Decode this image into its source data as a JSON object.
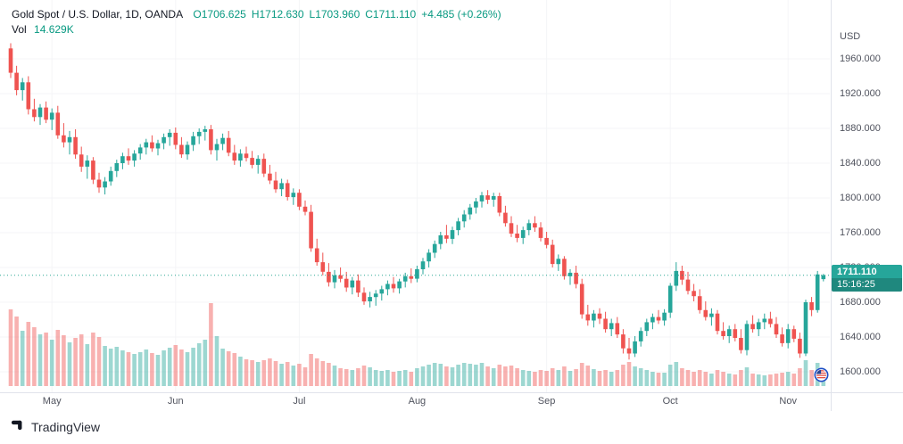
{
  "legend": {
    "symbol_title": "Gold Spot / U.S. Dollar, 1D, OANDA",
    "ohlc": {
      "open": "O1706.625",
      "high": "H1712.630",
      "low": "L1703.960",
      "close": "C1711.110",
      "change": "+4.485 (+0.26%)"
    },
    "volume_label": "Vol",
    "volume_value": "14.629K"
  },
  "price_axis": {
    "currency": "USD",
    "tick_labels": [
      "1960.000",
      "1920.000",
      "1880.000",
      "1840.000",
      "1800.000",
      "1760.000",
      "1720.000",
      "1680.000",
      "1640.000",
      "1600.000"
    ],
    "tick_values": [
      1960,
      1920,
      1880,
      1840,
      1800,
      1760,
      1720,
      1680,
      1640,
      1600
    ]
  },
  "time_axis": {
    "months": [
      {
        "label": "May",
        "index": 7
      },
      {
        "label": "Jun",
        "index": 28
      },
      {
        "label": "Jul",
        "index": 49
      },
      {
        "label": "Aug",
        "index": 69
      },
      {
        "label": "Sep",
        "index": 91
      },
      {
        "label": "Oct",
        "index": 112
      },
      {
        "label": "Nov",
        "index": 132
      }
    ]
  },
  "last_price": {
    "value": "1711.110",
    "countdown": "15:16:25",
    "price": 1711.11
  },
  "footer": {
    "brand": "TradingView"
  },
  "icons": [
    "tradingview-logo-icon",
    "us-flag-event-icon"
  ],
  "colors": {
    "up": "#26a69a",
    "down": "#ef5350",
    "vol_up": "rgba(38,166,154,0.45)",
    "vol_down": "rgba(239,83,80,0.45)",
    "text_green": "#089981",
    "axis_text": "#50535e",
    "title_text": "#131722",
    "grid": "#f4f5f7",
    "badge_bg": "#26a69a",
    "price_line": "#089981"
  },
  "chart_data": {
    "type": "candlestick",
    "title": "Gold Spot / U.S. Dollar, 1D, OANDA",
    "ylabel": "USD",
    "ylim": [
      1600,
      1960
    ],
    "x_unit": "daily bars, late Apr through Nov 9",
    "volume_unit": "K",
    "legend_position": "top-left",
    "grid": "faint",
    "last_close": 1711.11,
    "candles_format": [
      "open",
      "high",
      "low",
      "close",
      "volume_K"
    ],
    "candles": [
      [
        1972,
        1978,
        1938,
        1944,
        86
      ],
      [
        1944,
        1952,
        1918,
        1924,
        78
      ],
      [
        1924,
        1938,
        1912,
        1933,
        62
      ],
      [
        1933,
        1940,
        1896,
        1902,
        72
      ],
      [
        1902,
        1914,
        1888,
        1893,
        66
      ],
      [
        1893,
        1908,
        1884,
        1904,
        58
      ],
      [
        1904,
        1911,
        1886,
        1890,
        60
      ],
      [
        1890,
        1903,
        1878,
        1898,
        52
      ],
      [
        1898,
        1906,
        1868,
        1872,
        63
      ],
      [
        1872,
        1886,
        1858,
        1864,
        57
      ],
      [
        1864,
        1877,
        1850,
        1870,
        49
      ],
      [
        1870,
        1879,
        1845,
        1850,
        54
      ],
      [
        1850,
        1859,
        1830,
        1836,
        58
      ],
      [
        1836,
        1849,
        1822,
        1843,
        47
      ],
      [
        1843,
        1847,
        1816,
        1821,
        60
      ],
      [
        1821,
        1829,
        1806,
        1812,
        55
      ],
      [
        1812,
        1824,
        1804,
        1819,
        45
      ],
      [
        1819,
        1836,
        1814,
        1831,
        42
      ],
      [
        1831,
        1844,
        1824,
        1840,
        44
      ],
      [
        1840,
        1852,
        1833,
        1848,
        40
      ],
      [
        1848,
        1857,
        1838,
        1843,
        38
      ],
      [
        1843,
        1855,
        1836,
        1851,
        36
      ],
      [
        1851,
        1862,
        1844,
        1858,
        38
      ],
      [
        1858,
        1868,
        1850,
        1864,
        41
      ],
      [
        1864,
        1872,
        1853,
        1857,
        37
      ],
      [
        1857,
        1867,
        1849,
        1863,
        35
      ],
      [
        1863,
        1874,
        1856,
        1870,
        40
      ],
      [
        1870,
        1879,
        1860,
        1875,
        43
      ],
      [
        1875,
        1881,
        1856,
        1861,
        46
      ],
      [
        1861,
        1870,
        1846,
        1850,
        41
      ],
      [
        1850,
        1865,
        1844,
        1861,
        38
      ],
      [
        1861,
        1876,
        1854,
        1871,
        43
      ],
      [
        1871,
        1880,
        1862,
        1876,
        48
      ],
      [
        1876,
        1883,
        1866,
        1879,
        52
      ],
      [
        1879,
        1884,
        1850,
        1855,
        93
      ],
      [
        1855,
        1868,
        1843,
        1862,
        56
      ],
      [
        1862,
        1874,
        1855,
        1869,
        42
      ],
      [
        1869,
        1877,
        1848,
        1852,
        39
      ],
      [
        1852,
        1861,
        1838,
        1843,
        37
      ],
      [
        1843,
        1856,
        1836,
        1851,
        33
      ],
      [
        1851,
        1859,
        1842,
        1846,
        30
      ],
      [
        1846,
        1854,
        1834,
        1838,
        29
      ],
      [
        1838,
        1849,
        1828,
        1845,
        27
      ],
      [
        1845,
        1851,
        1824,
        1828,
        29
      ],
      [
        1828,
        1838,
        1816,
        1820,
        31
      ],
      [
        1820,
        1830,
        1806,
        1810,
        28
      ],
      [
        1810,
        1822,
        1802,
        1817,
        25
      ],
      [
        1817,
        1821,
        1797,
        1801,
        27
      ],
      [
        1801,
        1811,
        1792,
        1806,
        23
      ],
      [
        1806,
        1810,
        1786,
        1790,
        25
      ],
      [
        1790,
        1797,
        1780,
        1784,
        21
      ],
      [
        1784,
        1792,
        1738,
        1742,
        36
      ],
      [
        1742,
        1753,
        1722,
        1726,
        31
      ],
      [
        1726,
        1737,
        1711,
        1715,
        28
      ],
      [
        1715,
        1725,
        1698,
        1703,
        26
      ],
      [
        1703,
        1717,
        1696,
        1711,
        23
      ],
      [
        1711,
        1720,
        1703,
        1707,
        20
      ],
      [
        1707,
        1715,
        1692,
        1697,
        19
      ],
      [
        1697,
        1709,
        1689,
        1705,
        18
      ],
      [
        1705,
        1712,
        1686,
        1691,
        20
      ],
      [
        1691,
        1697,
        1677,
        1681,
        23
      ],
      [
        1681,
        1692,
        1674,
        1686,
        21
      ],
      [
        1686,
        1694,
        1676,
        1690,
        18
      ],
      [
        1690,
        1699,
        1682,
        1695,
        17
      ],
      [
        1695,
        1705,
        1688,
        1701,
        18
      ],
      [
        1701,
        1709,
        1691,
        1696,
        16
      ],
      [
        1696,
        1707,
        1690,
        1704,
        17
      ],
      [
        1704,
        1714,
        1697,
        1710,
        18
      ],
      [
        1710,
        1719,
        1702,
        1707,
        16
      ],
      [
        1707,
        1722,
        1703,
        1718,
        20
      ],
      [
        1718,
        1731,
        1712,
        1727,
        22
      ],
      [
        1727,
        1741,
        1720,
        1737,
        24
      ],
      [
        1737,
        1751,
        1731,
        1747,
        26
      ],
      [
        1747,
        1761,
        1741,
        1757,
        25
      ],
      [
        1757,
        1769,
        1748,
        1753,
        22
      ],
      [
        1753,
        1767,
        1747,
        1763,
        21
      ],
      [
        1763,
        1777,
        1757,
        1773,
        24
      ],
      [
        1773,
        1786,
        1766,
        1781,
        26
      ],
      [
        1781,
        1793,
        1775,
        1789,
        25
      ],
      [
        1789,
        1800,
        1782,
        1796,
        24
      ],
      [
        1796,
        1807,
        1789,
        1803,
        26
      ],
      [
        1803,
        1809,
        1793,
        1798,
        22
      ],
      [
        1798,
        1806,
        1790,
        1802,
        20
      ],
      [
        1802,
        1806,
        1779,
        1783,
        24
      ],
      [
        1783,
        1791,
        1767,
        1771,
        22
      ],
      [
        1771,
        1779,
        1755,
        1759,
        23
      ],
      [
        1759,
        1769,
        1749,
        1754,
        20
      ],
      [
        1754,
        1767,
        1747,
        1763,
        18
      ],
      [
        1763,
        1775,
        1757,
        1771,
        17
      ],
      [
        1771,
        1779,
        1761,
        1766,
        16
      ],
      [
        1766,
        1772,
        1750,
        1754,
        18
      ],
      [
        1754,
        1761,
        1742,
        1746,
        17
      ],
      [
        1746,
        1752,
        1720,
        1724,
        20
      ],
      [
        1724,
        1735,
        1716,
        1730,
        18
      ],
      [
        1730,
        1733,
        1706,
        1710,
        22
      ],
      [
        1710,
        1718,
        1700,
        1714,
        17
      ],
      [
        1714,
        1722,
        1696,
        1701,
        19
      ],
      [
        1701,
        1707,
        1661,
        1666,
        26
      ],
      [
        1666,
        1677,
        1653,
        1659,
        23
      ],
      [
        1659,
        1671,
        1651,
        1667,
        19
      ],
      [
        1667,
        1673,
        1655,
        1661,
        17
      ],
      [
        1661,
        1669,
        1645,
        1649,
        18
      ],
      [
        1649,
        1661,
        1641,
        1656,
        16
      ],
      [
        1656,
        1663,
        1639,
        1643,
        18
      ],
      [
        1643,
        1649,
        1621,
        1627,
        24
      ],
      [
        1627,
        1639,
        1614,
        1621,
        27
      ],
      [
        1621,
        1641,
        1617,
        1635,
        22
      ],
      [
        1635,
        1651,
        1629,
        1647,
        20
      ],
      [
        1647,
        1661,
        1641,
        1657,
        18
      ],
      [
        1657,
        1667,
        1649,
        1663,
        16
      ],
      [
        1663,
        1671,
        1655,
        1659,
        15
      ],
      [
        1659,
        1672,
        1653,
        1668,
        15
      ],
      [
        1668,
        1702,
        1662,
        1699,
        24
      ],
      [
        1699,
        1726,
        1693,
        1716,
        27
      ],
      [
        1716,
        1722,
        1700,
        1706,
        20
      ],
      [
        1706,
        1715,
        1689,
        1693,
        18
      ],
      [
        1693,
        1701,
        1681,
        1687,
        16
      ],
      [
        1687,
        1695,
        1667,
        1671,
        18
      ],
      [
        1671,
        1681,
        1659,
        1663,
        16
      ],
      [
        1663,
        1673,
        1653,
        1667,
        14
      ],
      [
        1667,
        1671,
        1643,
        1647,
        18
      ],
      [
        1647,
        1657,
        1637,
        1641,
        16
      ],
      [
        1641,
        1653,
        1633,
        1649,
        14
      ],
      [
        1649,
        1655,
        1635,
        1639,
        13
      ],
      [
        1639,
        1649,
        1621,
        1625,
        18
      ],
      [
        1625,
        1659,
        1619,
        1655,
        21
      ],
      [
        1655,
        1665,
        1645,
        1649,
        14
      ],
      [
        1649,
        1661,
        1641,
        1657,
        13
      ],
      [
        1657,
        1667,
        1649,
        1661,
        12
      ],
      [
        1661,
        1669,
        1651,
        1655,
        13
      ],
      [
        1655,
        1663,
        1639,
        1643,
        14
      ],
      [
        1643,
        1651,
        1629,
        1633,
        15
      ],
      [
        1633,
        1655,
        1627,
        1649,
        16
      ],
      [
        1649,
        1653,
        1634,
        1638,
        14
      ],
      [
        1638,
        1645,
        1616,
        1621,
        20
      ],
      [
        1621,
        1683,
        1618,
        1680,
        29
      ],
      [
        1680,
        1686,
        1664,
        1671,
        18
      ],
      [
        1671,
        1716,
        1668,
        1712,
        26
      ],
      [
        1706.625,
        1712.63,
        1703.96,
        1711.11,
        14.629
      ]
    ]
  }
}
